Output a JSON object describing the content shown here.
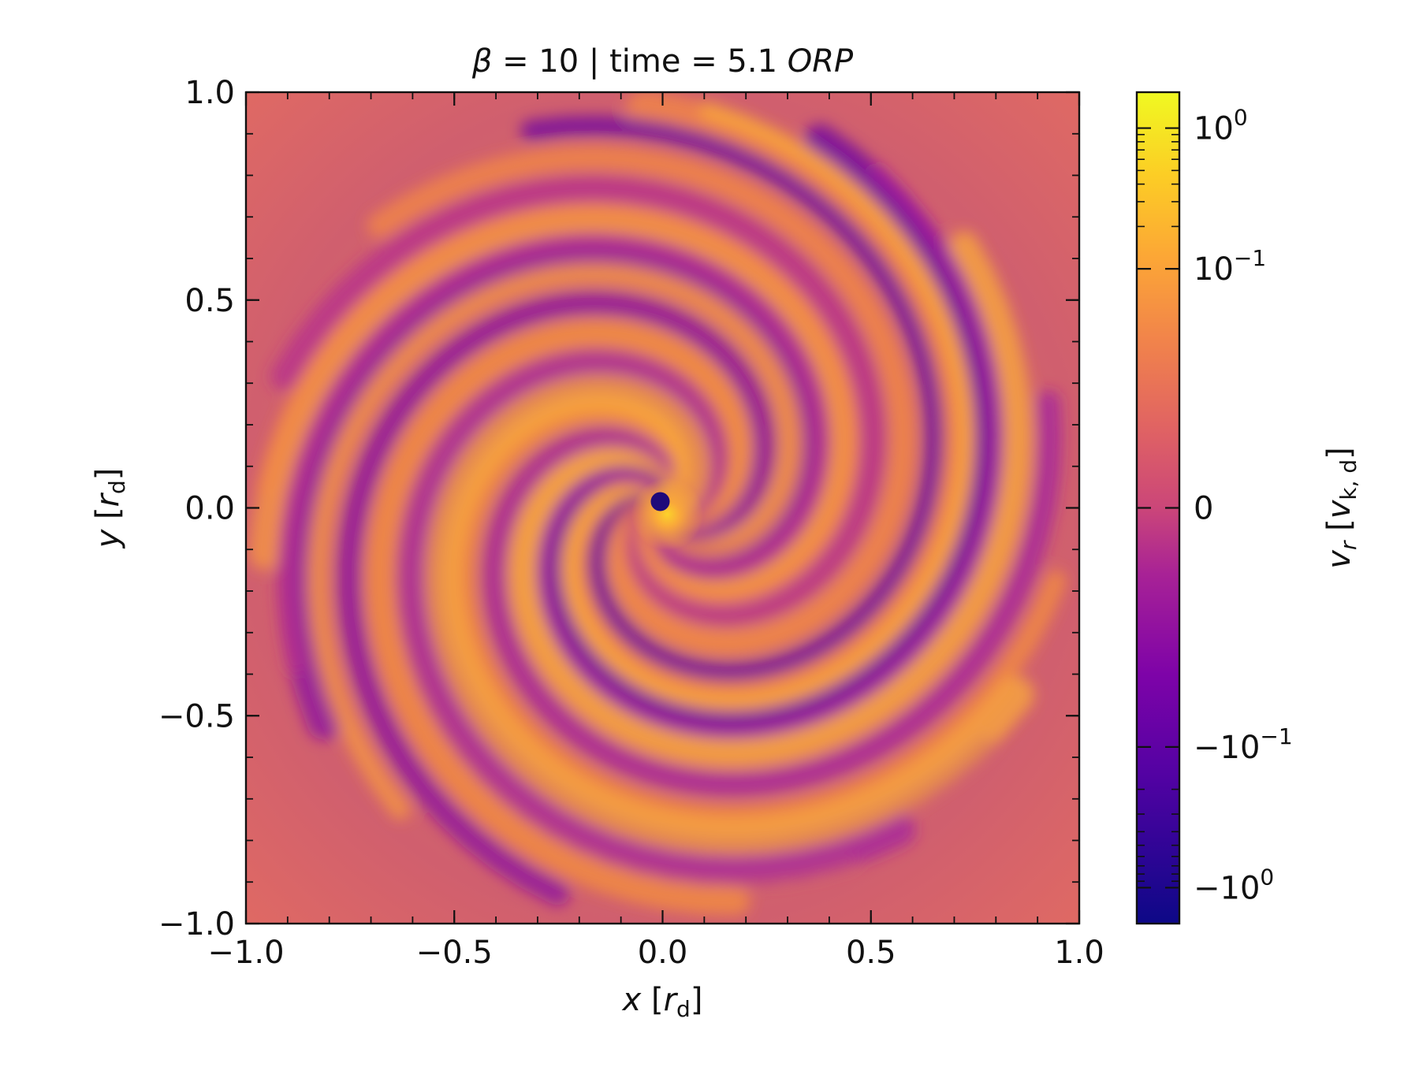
{
  "chart_data": {
    "type": "heatmap",
    "title": {
      "beta_symbol": "β",
      "beta_text": " = 10 | time = 5.1 ",
      "unit_italic": "ORP"
    },
    "xlabel": {
      "var": "x",
      "unit": "r",
      "unit_sub": "d"
    },
    "ylabel": {
      "var": "y",
      "unit": "r",
      "unit_sub": "d"
    },
    "xlim": [
      -1.0,
      1.0
    ],
    "ylim": [
      -1.0,
      1.0
    ],
    "x_ticks": [
      -1.0,
      -0.5,
      0.0,
      0.5,
      1.0
    ],
    "y_ticks": [
      -1.0,
      -0.5,
      0.0,
      0.5,
      1.0
    ],
    "x_tick_labels": [
      "−1.0",
      "−0.5",
      "0.0",
      "0.5",
      "1.0"
    ],
    "y_tick_labels": [
      "−1.0",
      "−0.5",
      "0.0",
      "0.5",
      "1.0"
    ],
    "colormap": "plasma",
    "colorbar": {
      "label_var": "v",
      "label_var_sub": "r",
      "label_unit": "v",
      "label_unit_sub": "k, d",
      "scale": "symlog",
      "tick_values": [
        1,
        0.1,
        0,
        -0.1,
        -1
      ],
      "tick_labels": [
        {
          "base": "10",
          "exp": "0"
        },
        {
          "base": "10",
          "exp": "−1"
        },
        {
          "base": "0",
          "exp": ""
        },
        {
          "base": "−10",
          "exp": "−1"
        },
        {
          "base": "−10",
          "exp": "0"
        }
      ],
      "range": [
        -1.8,
        1.8
      ]
    }
  }
}
